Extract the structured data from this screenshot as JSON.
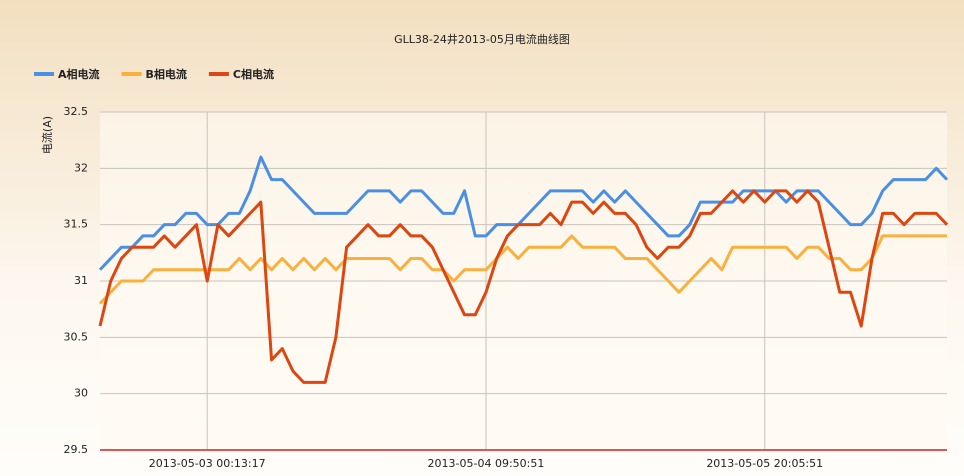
{
  "chart_data": {
    "type": "line",
    "title": "GLL38-24井2013-05月电流曲线图",
    "y_label": "电流(A)",
    "categories": [
      null,
      null,
      null,
      null,
      null,
      null,
      null,
      null,
      null,
      null,
      "2013-05-03 00:13:17",
      null,
      null,
      null,
      null,
      null,
      null,
      null,
      null,
      null,
      null,
      null,
      null,
      null,
      null,
      null,
      null,
      null,
      null,
      null,
      null,
      null,
      null,
      null,
      null,
      null,
      "2013-05-04 09:50:51",
      null,
      null,
      null,
      null,
      null,
      null,
      null,
      null,
      null,
      null,
      null,
      null,
      null,
      null,
      null,
      null,
      null,
      null,
      null,
      null,
      null,
      null,
      null,
      null,
      null,
      "2013-05-05 20:05:51",
      null,
      null,
      null,
      null,
      null,
      null,
      null,
      null,
      null,
      null,
      null,
      null,
      null,
      null,
      null,
      null,
      null
    ],
    "series": [
      {
        "name": "A相电流",
        "color": "#4a8fe3",
        "values": [
          31.1,
          31.2,
          31.3,
          31.3,
          31.4,
          31.4,
          31.5,
          31.5,
          31.6,
          31.6,
          31.5,
          31.5,
          31.6,
          31.6,
          31.8,
          32.1,
          31.9,
          31.9,
          31.8,
          31.7,
          31.6,
          31.6,
          31.6,
          31.6,
          31.7,
          31.8,
          31.8,
          31.8,
          31.7,
          31.8,
          31.8,
          31.7,
          31.6,
          31.6,
          31.8,
          31.4,
          31.4,
          31.5,
          31.5,
          31.5,
          31.6,
          31.7,
          31.8,
          31.8,
          31.8,
          31.8,
          31.7,
          31.8,
          31.7,
          31.8,
          31.7,
          31.6,
          31.5,
          31.4,
          31.4,
          31.5,
          31.7,
          31.7,
          31.7,
          31.7,
          31.8,
          31.8,
          31.8,
          31.8,
          31.7,
          31.8,
          31.8,
          31.8,
          31.7,
          31.6,
          31.5,
          31.5,
          31.6,
          31.8,
          31.9,
          31.9,
          31.9,
          31.9,
          32.0,
          31.9
        ]
      },
      {
        "name": "B相电流",
        "color": "#f9b03c",
        "values": [
          30.8,
          30.9,
          31.0,
          31.0,
          31.0,
          31.1,
          31.1,
          31.1,
          31.1,
          31.1,
          31.1,
          31.1,
          31.1,
          31.2,
          31.1,
          31.2,
          31.1,
          31.2,
          31.1,
          31.2,
          31.1,
          31.2,
          31.1,
          31.2,
          31.2,
          31.2,
          31.2,
          31.2,
          31.1,
          31.2,
          31.2,
          31.1,
          31.1,
          31.0,
          31.1,
          31.1,
          31.1,
          31.2,
          31.3,
          31.2,
          31.3,
          31.3,
          31.3,
          31.3,
          31.4,
          31.3,
          31.3,
          31.3,
          31.3,
          31.2,
          31.2,
          31.2,
          31.1,
          31.0,
          30.9,
          31.0,
          31.1,
          31.2,
          31.1,
          31.3,
          31.3,
          31.3,
          31.3,
          31.3,
          31.3,
          31.2,
          31.3,
          31.3,
          31.2,
          31.2,
          31.1,
          31.1,
          31.2,
          31.4,
          31.4,
          31.4,
          31.4,
          31.4,
          31.4,
          31.4
        ]
      },
      {
        "name": "C相电流",
        "color": "#dc4610",
        "values": [
          30.6,
          31.0,
          31.2,
          31.3,
          31.3,
          31.3,
          31.4,
          31.3,
          31.4,
          31.5,
          31.0,
          31.5,
          31.4,
          31.5,
          31.6,
          31.7,
          30.3,
          30.4,
          30.2,
          30.1,
          30.1,
          30.1,
          30.5,
          31.3,
          31.4,
          31.5,
          31.4,
          31.4,
          31.5,
          31.4,
          31.4,
          31.3,
          31.1,
          30.9,
          30.7,
          30.7,
          30.9,
          31.2,
          31.4,
          31.5,
          31.5,
          31.5,
          31.6,
          31.5,
          31.7,
          31.7,
          31.6,
          31.7,
          31.6,
          31.6,
          31.5,
          31.3,
          31.2,
          31.3,
          31.3,
          31.4,
          31.6,
          31.6,
          31.7,
          31.8,
          31.7,
          31.8,
          31.7,
          31.8,
          31.8,
          31.7,
          31.8,
          31.7,
          31.3,
          30.9,
          30.9,
          30.6,
          31.2,
          31.6,
          31.6,
          31.5,
          31.6,
          31.6,
          31.6,
          31.5
        ]
      }
    ],
    "ylim": [
      29.5,
      32.5
    ],
    "yticks": [
      29.5,
      30,
      30.5,
      31,
      31.5,
      32,
      32.5
    ],
    "grid": true
  }
}
